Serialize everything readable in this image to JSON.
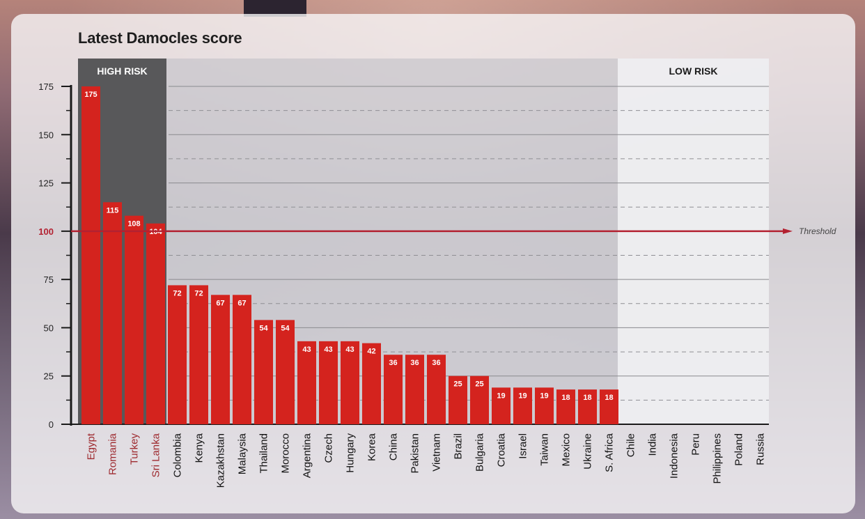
{
  "title": "Latest Damocles score",
  "zones": {
    "high": "HIGH RISK",
    "low": "LOW RISK"
  },
  "threshold": {
    "value": 100,
    "label": "Threshold"
  },
  "colors": {
    "bar": "#d4231e",
    "threshold": "#b32131",
    "high_zone": "#58585a",
    "high_label": "#9e2a2f"
  },
  "chart_data": {
    "type": "bar",
    "categories": [
      "Egypt",
      "Romania",
      "Turkey",
      "Sri Lanka",
      "Colombia",
      "Kenya",
      "Kazakhstan",
      "Malaysia",
      "Thailand",
      "Morocco",
      "Argentina",
      "Czech",
      "Hungary",
      "Korea",
      "China",
      "Pakistan",
      "Vietnam",
      "Brazil",
      "Bulgaria",
      "Croatia",
      "Israel",
      "Taiwan",
      "Mexico",
      "Ukraine",
      "S. Africa",
      "Chile",
      "India",
      "Indonesia",
      "Peru",
      "Philippines",
      "Poland",
      "Russia"
    ],
    "values": [
      175,
      115,
      108,
      104,
      72,
      72,
      67,
      67,
      54,
      54,
      43,
      43,
      43,
      42,
      36,
      36,
      36,
      25,
      25,
      19,
      19,
      19,
      18,
      18,
      18,
      null,
      null,
      null,
      null,
      null,
      null,
      null
    ],
    "ylim": [
      0,
      175
    ],
    "yticks": [
      0,
      25,
      50,
      75,
      100,
      125,
      150,
      175
    ],
    "high_risk_categories": [
      "Egypt",
      "Romania",
      "Turkey",
      "Sri Lanka"
    ],
    "low_risk_categories": [
      "Chile",
      "India",
      "Indonesia",
      "Peru",
      "Philippines",
      "Poland",
      "Russia"
    ],
    "grid": true
  }
}
